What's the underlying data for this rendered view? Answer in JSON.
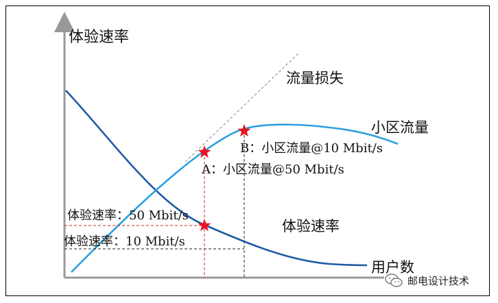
{
  "labels": {
    "y_axis": "体验速率",
    "x_axis": "用户数",
    "traffic_loss": "流量损失",
    "cell_traffic": "小区流量",
    "experience_rate": "体验速率",
    "point_b": "B：小区流量@10 Mbit/s",
    "point_a": "A：小区流量@50 Mbit/s",
    "rate_50": "体验速率：50 Mbit/s",
    "rate_10": "体验速率：10 Mbit/s"
  },
  "watermark": {
    "text": "邮电设计技术",
    "icon": "wechat-icon"
  },
  "colors": {
    "dark_curve": "#1f5aa6",
    "light_curve": "#2b9fe0",
    "star": "#e8141e",
    "red_dash": "#c0282e",
    "guide": "#999999"
  }
}
